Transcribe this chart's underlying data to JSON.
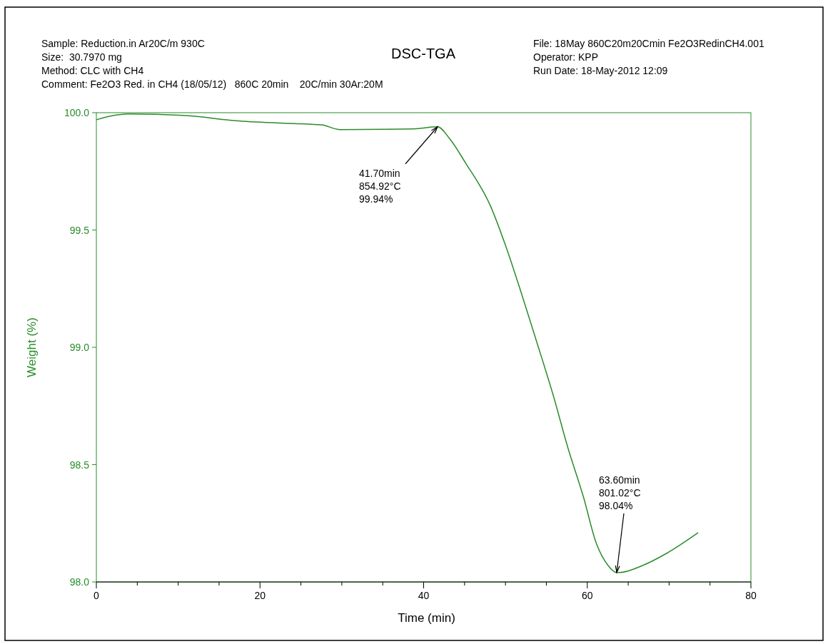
{
  "chart_data": {
    "type": "line",
    "title": "DSC-TGA",
    "xlabel": "Time (min)",
    "ylabel": "Weight (%)",
    "annotations": [
      "Sample: Reduction.in Ar20C/m 930C",
      "Size:  30.7970 mg",
      "Method: CLC with CH4",
      "Comment: Fe2O3 Red. in CH4 (18/05/12)   860C 20min    20C/min 30Ar:20M",
      "File: 18May 860C20m20Cmin Fe2O3RedinCH4.001",
      "Operator: KPP",
      "Run Date: 18-May-2012 12:09",
      {
        "text": "41.70min\n854.92°C\n99.94%",
        "x": 41.7,
        "y": 99.94
      },
      {
        "text": "63.60min\n801.02°C\n98.04%",
        "x": 63.6,
        "y": 98.04
      }
    ],
    "xlim": [
      0,
      80
    ],
    "ylim": [
      98,
      100
    ],
    "xticks": [
      0,
      {
        "value": 5,
        "label": null
      },
      {
        "value": 10,
        "label": null
      },
      {
        "value": 15,
        "label": null
      },
      20,
      {
        "value": 25,
        "label": null
      },
      {
        "value": 30,
        "label": null
      },
      {
        "value": 35,
        "label": null
      },
      40,
      {
        "value": 45,
        "label": null
      },
      {
        "value": 50,
        "label": null
      },
      {
        "value": 55,
        "label": null
      },
      60,
      {
        "value": 65,
        "label": null
      },
      {
        "value": 70,
        "label": null
      },
      {
        "value": 75,
        "label": null
      },
      80
    ],
    "yticks": [
      {
        "value": 98,
        "label": "98.0"
      },
      {
        "value": 98.5,
        "label": "98.5"
      },
      {
        "value": 99,
        "label": "99.0"
      },
      {
        "value": 99.5,
        "label": "99.5"
      },
      {
        "value": 100,
        "label": "100.0"
      }
    ],
    "grid": false,
    "series": [
      {
        "color": "#2a8c2a",
        "x": [
          0,
          2.4,
          3.9,
          11.2,
          17,
          22.9,
          27.5,
          29.8,
          38.8,
          41.7,
          43.2,
          45.1,
          48.2,
          50.05,
          51.95,
          53.85,
          55.8,
          57.65,
          59.55,
          61.05,
          62.55,
          63.6,
          63.9,
          66.75,
          69.6,
          73.55
        ],
        "values": [
          99.97,
          99.99,
          99.995,
          99.987,
          99.966,
          99.955,
          99.948,
          99.928,
          99.931,
          99.94,
          99.888,
          99.787,
          99.6,
          99.43,
          99.23,
          99.02,
          98.8,
          98.57,
          98.36,
          98.17,
          98.07,
          98.04,
          98.04,
          98.07,
          98.12,
          98.21
        ]
      }
    ]
  }
}
